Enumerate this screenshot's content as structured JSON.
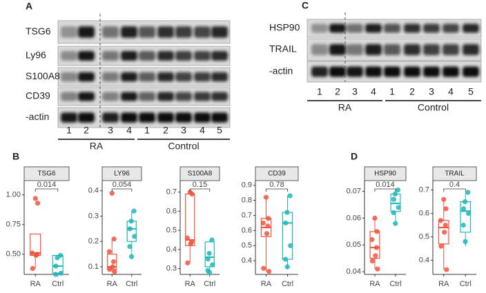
{
  "blot_a": {
    "panel": "A",
    "rows": [
      "TSG6",
      "Ly96",
      "S100A8",
      "CD39",
      "-actin"
    ],
    "lanes": [
      "1",
      "2",
      "3",
      "4",
      "1",
      "2",
      "3",
      "4",
      "5"
    ],
    "groups": [
      "RA",
      "Control"
    ]
  },
  "blot_c": {
    "panel": "C",
    "rows": [
      "HSP90",
      "TRAIL",
      "-actin"
    ],
    "lanes": [
      "1",
      "2",
      "3",
      "4",
      "1",
      "2",
      "3",
      "4",
      "5"
    ],
    "groups": [
      "RA",
      "Control"
    ]
  },
  "panel_b": "B",
  "panel_d": "D",
  "chart_data": [
    {
      "type": "box",
      "title": "TSG6",
      "categories": [
        "RA",
        "Ctrl"
      ],
      "colors": [
        "#f0533d",
        "#1fb5b8"
      ],
      "annotation": "0.014",
      "min": [
        0.38,
        0.31
      ],
      "q1": [
        0.49,
        0.34
      ],
      "median": [
        0.51,
        0.4
      ],
      "q3": [
        0.67,
        0.49
      ],
      "max": [
        0.67,
        0.49
      ],
      "points": [
        [
          0.97,
          0.93,
          0.51,
          0.5,
          0.49,
          0.38
        ],
        [
          0.49,
          0.47,
          0.4,
          0.34,
          0.33
        ]
      ],
      "ylim": [
        0.33,
        1.12
      ],
      "yticks": [
        {
          "value": 0.5,
          "label": "0.50"
        },
        0.75,
        {
          "value": 1,
          "label": "1.00"
        }
      ]
    },
    {
      "type": "box",
      "title": "LY96",
      "categories": [
        "RA",
        "Ctrl"
      ],
      "colors": [
        "#f0533d",
        "#1fb5b8"
      ],
      "annotation": "0.054",
      "min": [
        0.08,
        0.14
      ],
      "q1": [
        0.09,
        0.2
      ],
      "median": [
        0.1,
        0.25
      ],
      "q3": [
        0.15,
        0.28
      ],
      "max": [
        0.21,
        0.32
      ],
      "points": [
        [
          0.39,
          0.21,
          0.16,
          0.12,
          0.1,
          0.09,
          0.08
        ],
        [
          0.32,
          0.28,
          0.25,
          0.22,
          0.18,
          0.14
        ]
      ],
      "ylim": [
        0.07,
        0.44
      ],
      "yticks": [
        0.1,
        0.2,
        0.3,
        0.4
      ]
    },
    {
      "type": "box",
      "title": "S100A8",
      "categories": [
        "RA",
        "Ctrl"
      ],
      "colors": [
        "#f0533d",
        "#1fb5b8"
      ],
      "annotation": "0.15",
      "min": [
        0.33,
        0.29
      ],
      "q1": [
        0.42,
        0.31
      ],
      "median": [
        0.45,
        0.36
      ],
      "q3": [
        0.69,
        0.44
      ],
      "max": [
        0.7,
        0.45
      ],
      "points": [
        [
          0.7,
          0.69,
          0.46,
          0.44,
          0.43,
          0.33
        ],
        [
          0.45,
          0.38,
          0.35,
          0.32,
          0.29,
          0.28
        ]
      ],
      "ylim": [
        0.27,
        0.76
      ],
      "yticks": [
        0.3,
        0.4,
        0.5,
        0.6,
        0.7
      ]
    },
    {
      "type": "box",
      "title": "CD39",
      "categories": [
        "RA",
        "Ctrl"
      ],
      "colors": [
        "#f0533d",
        "#1fb5b8"
      ],
      "annotation": "0.78",
      "min": [
        0.33,
        0.35
      ],
      "q1": [
        0.56,
        0.41
      ],
      "median": [
        0.62,
        0.65
      ],
      "q3": [
        0.68,
        0.72
      ],
      "max": [
        0.82,
        0.83
      ],
      "points": [
        [
          0.82,
          0.68,
          0.65,
          0.63,
          0.58,
          0.35,
          0.33
        ],
        [
          0.83,
          0.72,
          0.65,
          0.5,
          0.41,
          0.36
        ]
      ],
      "ylim": [
        0.31,
        0.93
      ],
      "yticks": [
        0.4,
        0.5,
        0.6,
        0.7,
        0.8,
        0.9
      ]
    },
    {
      "type": "box",
      "title": "HSP90",
      "categories": [
        "RA",
        "Ctrl"
      ],
      "colors": [
        "#f0533d",
        "#1fb5b8"
      ],
      "annotation": "0.014",
      "min": [
        0.041,
        0.058
      ],
      "q1": [
        0.045,
        0.0625
      ],
      "median": [
        0.049,
        0.0655
      ],
      "q3": [
        0.055,
        0.069
      ],
      "max": [
        0.06,
        0.0705
      ],
      "points": [
        [
          0.06,
          0.055,
          0.052,
          0.049,
          0.046,
          0.044,
          0.041
        ],
        [
          0.0705,
          0.069,
          0.067,
          0.064,
          0.062,
          0.058
        ]
      ],
      "ylim": [
        0.039,
        0.074
      ],
      "yticks": [
        0.04,
        0.05,
        0.06,
        0.07
      ]
    },
    {
      "type": "box",
      "title": "TRAIL",
      "categories": [
        "RA",
        "Ctrl"
      ],
      "colors": [
        "#f0533d",
        "#1fb5b8"
      ],
      "annotation": "0.4",
      "min": [
        0.36,
        0.46
      ],
      "q1": [
        0.47,
        0.52
      ],
      "median": [
        0.54,
        0.61
      ],
      "q3": [
        0.57,
        0.65
      ],
      "max": [
        0.66,
        0.69
      ],
      "points": [
        [
          0.66,
          0.62,
          0.57,
          0.55,
          0.52,
          0.46,
          0.36
        ],
        [
          0.69,
          0.65,
          0.62,
          0.6,
          0.55,
          0.48
        ]
      ],
      "ylim": [
        0.34,
        0.74
      ],
      "yticks": [
        0.4,
        0.5,
        0.6,
        0.7
      ]
    }
  ]
}
